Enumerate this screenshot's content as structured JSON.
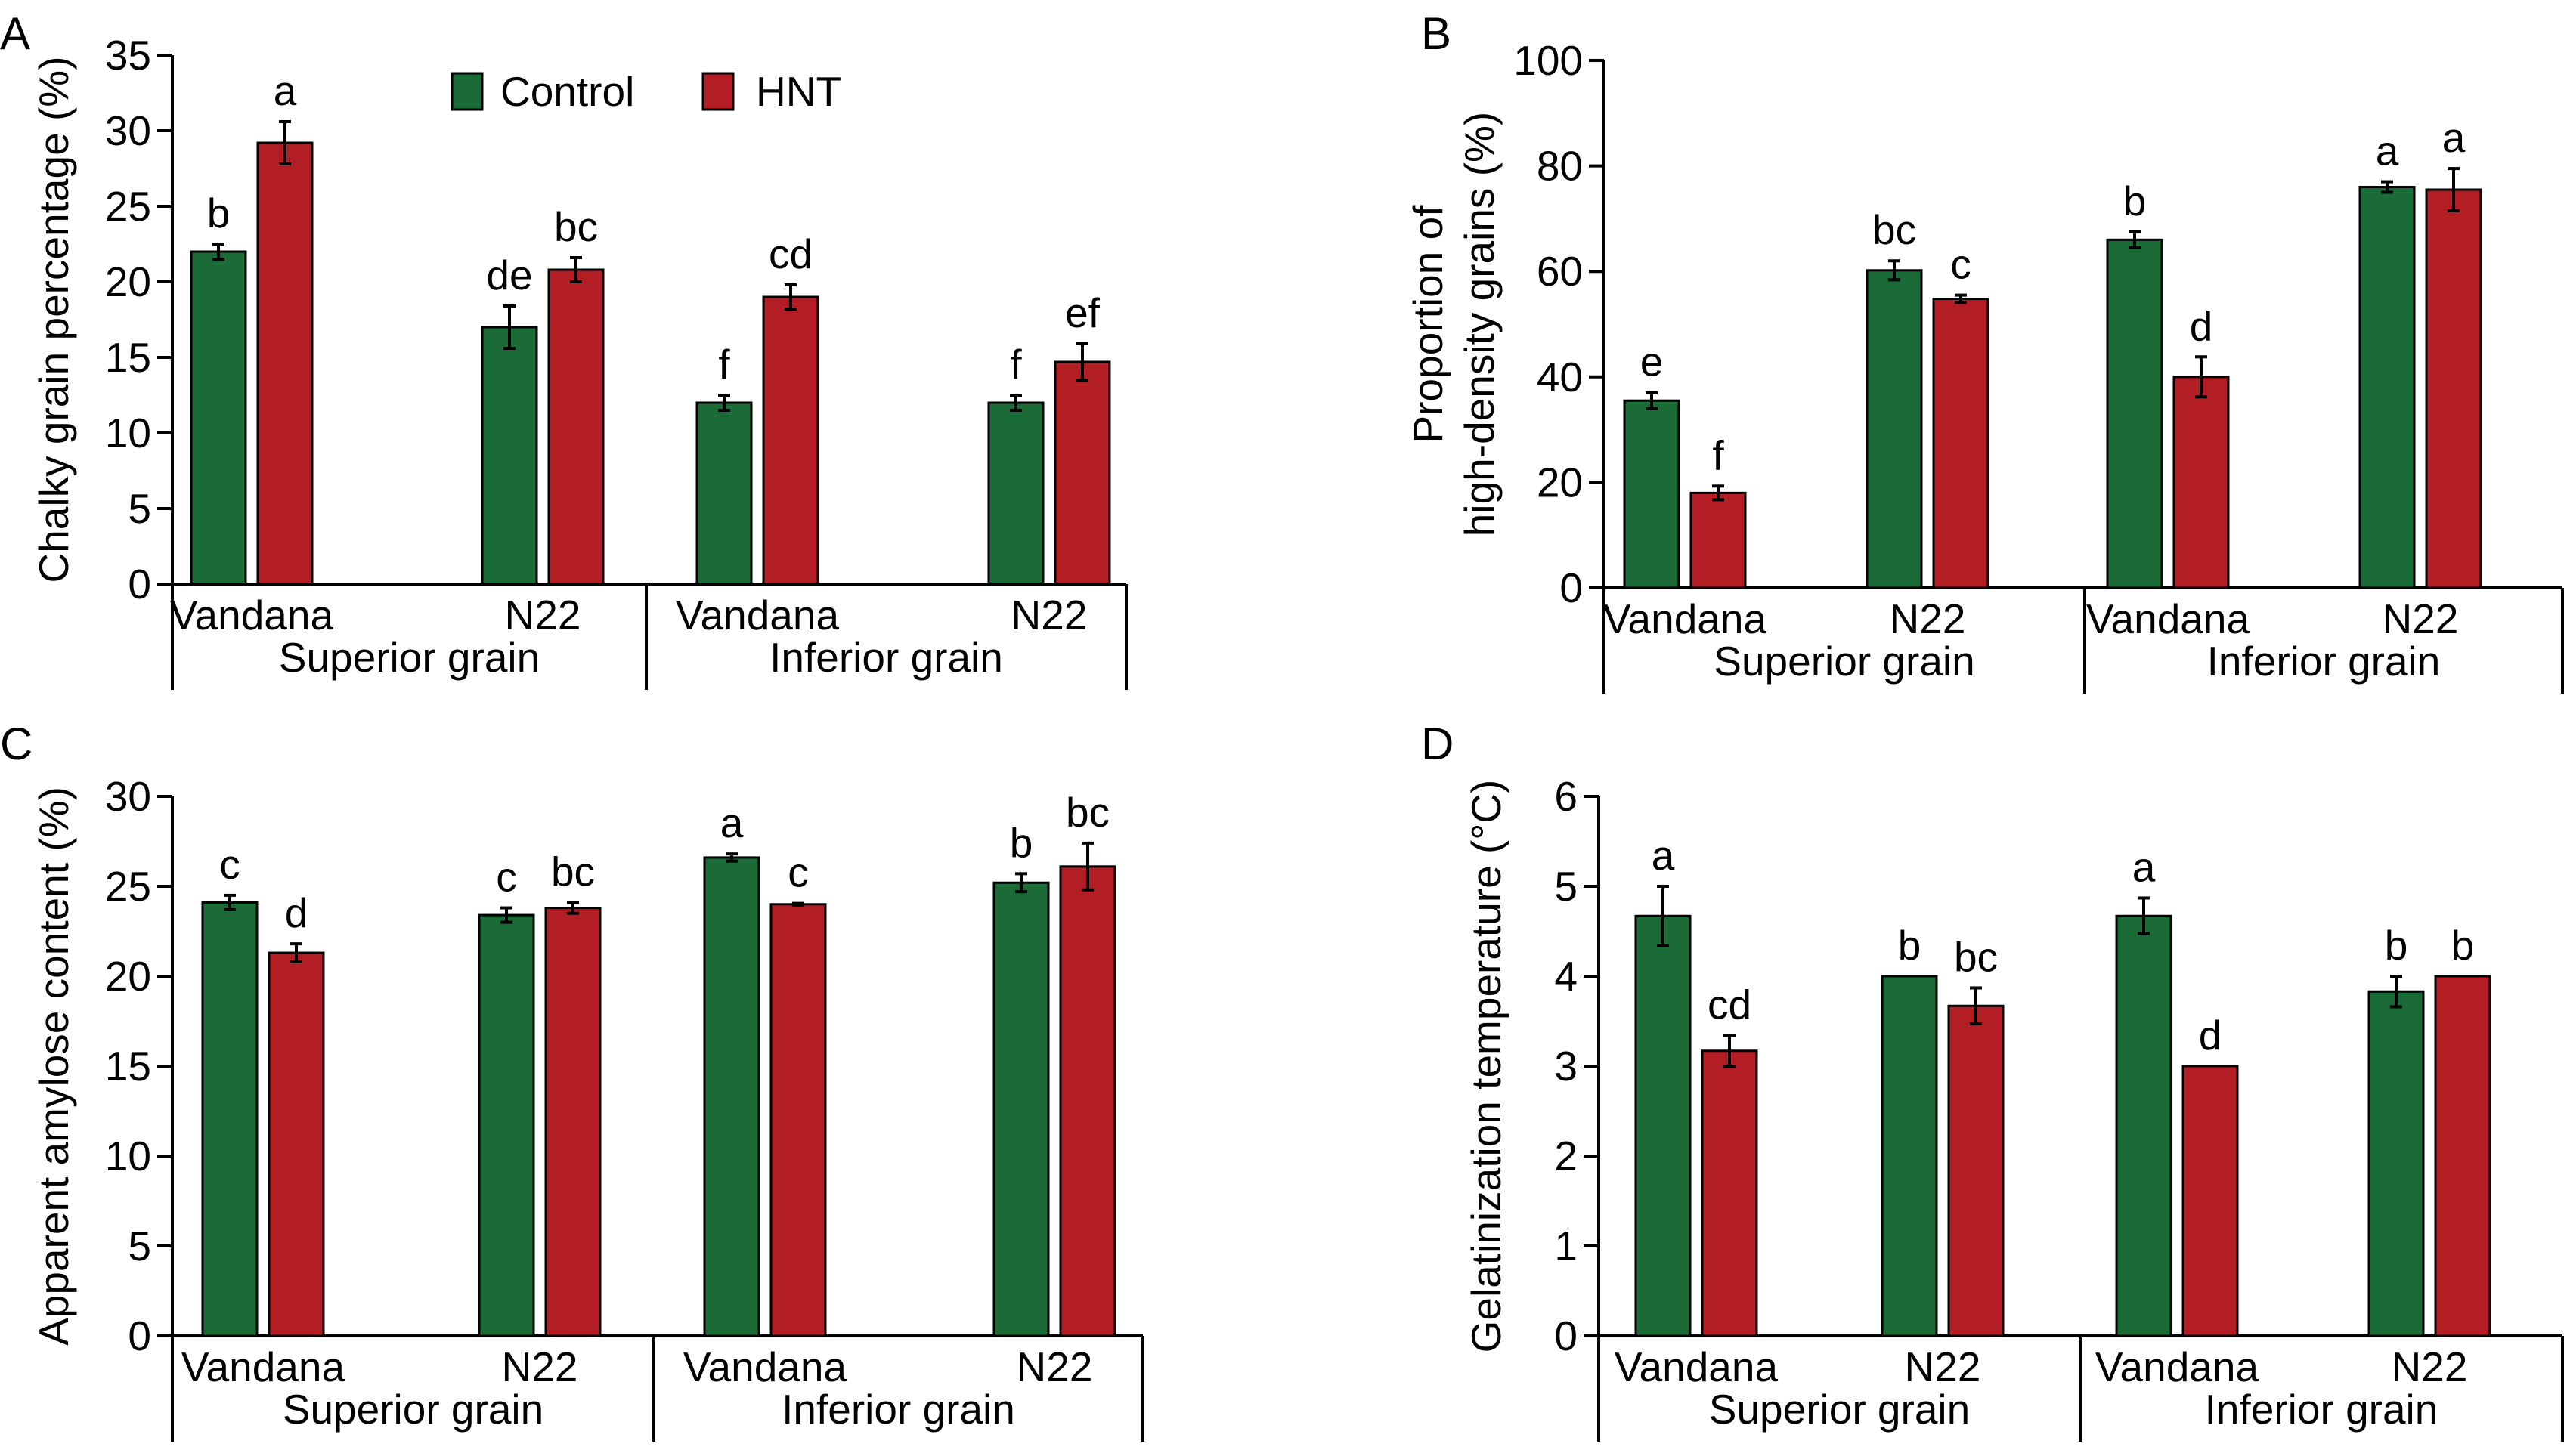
{
  "legend": {
    "entries": [
      {
        "label": "Control",
        "color": "#1a6b35"
      },
      {
        "label": "HNT",
        "color": "#b31e24"
      }
    ]
  },
  "colors": {
    "control": "#1a6b35",
    "hnt": "#b31e24",
    "axis": "#000000"
  },
  "chart_data": [
    {
      "panel": "A",
      "type": "bar",
      "ylabel": "Chalky grain percentage (%)",
      "ylim": [
        0,
        35
      ],
      "yticks": [
        0,
        5,
        10,
        15,
        20,
        25,
        30,
        35
      ],
      "categories": [
        "Vandana",
        "N22",
        "Vandana",
        "N22"
      ],
      "groups": [
        "Superior grain",
        "Inferior grain"
      ],
      "series": [
        {
          "name": "Control",
          "values": [
            22.0,
            17.0,
            12.0,
            12.0
          ],
          "errors": [
            0.5,
            1.4,
            0.5,
            0.5
          ],
          "letters": [
            "b",
            "de",
            "f",
            "f"
          ]
        },
        {
          "name": "HNT",
          "values": [
            29.2,
            20.8,
            19.0,
            14.7
          ],
          "errors": [
            1.4,
            0.8,
            0.8,
            1.2
          ],
          "letters": [
            "a",
            "bc",
            "cd",
            "ef"
          ]
        }
      ]
    },
    {
      "panel": "B",
      "type": "bar",
      "ylabel": "Proportion of high-density grains (%)",
      "ylabel_lines": [
        "Proportion of",
        "high-density grains (%)"
      ],
      "ylim": [
        0,
        100
      ],
      "yticks": [
        0,
        20,
        40,
        60,
        80,
        100
      ],
      "categories": [
        "Vandana",
        "N22",
        "Vandana",
        "N22"
      ],
      "groups": [
        "Superior grain",
        "Inferior grain"
      ],
      "series": [
        {
          "name": "Control",
          "values": [
            35.5,
            60.2,
            66.0,
            76.0
          ],
          "errors": [
            1.5,
            1.8,
            1.5,
            1.0
          ],
          "letters": [
            "e",
            "bc",
            "b",
            "a"
          ]
        },
        {
          "name": "HNT",
          "values": [
            18.0,
            54.8,
            40.0,
            75.5
          ],
          "errors": [
            1.3,
            0.7,
            3.8,
            4.0
          ],
          "letters": [
            "f",
            "c",
            "d",
            "a"
          ]
        }
      ]
    },
    {
      "panel": "C",
      "type": "bar",
      "ylabel": "Apparent amylose content (%)",
      "ylim": [
        0,
        30
      ],
      "yticks": [
        0,
        5,
        10,
        15,
        20,
        25,
        30
      ],
      "categories": [
        "Vandana",
        "N22",
        "Vandana",
        "N22"
      ],
      "groups": [
        "Superior grain",
        "Inferior grain"
      ],
      "series": [
        {
          "name": "Control",
          "values": [
            24.1,
            23.4,
            26.6,
            25.2
          ],
          "errors": [
            0.4,
            0.4,
            0.2,
            0.5
          ],
          "letters": [
            "c",
            "c",
            "a",
            "b"
          ]
        },
        {
          "name": "HNT",
          "values": [
            21.3,
            23.8,
            24.0,
            26.1
          ],
          "errors": [
            0.5,
            0.3,
            0.05,
            1.3
          ],
          "letters": [
            "d",
            "bc",
            "c",
            "bc"
          ]
        }
      ]
    },
    {
      "panel": "D",
      "type": "bar",
      "ylabel": "Gelatinization temperature (°C)",
      "ylim": [
        0,
        6
      ],
      "yticks": [
        0,
        1,
        2,
        3,
        4,
        5,
        6
      ],
      "categories": [
        "Vandana",
        "N22",
        "Vandana",
        "N22"
      ],
      "groups": [
        "Superior grain",
        "Inferior grain"
      ],
      "series": [
        {
          "name": "Control",
          "values": [
            4.67,
            4.0,
            4.67,
            3.83
          ],
          "errors": [
            0.33,
            0.0,
            0.2,
            0.17
          ],
          "letters": [
            "a",
            "b",
            "a",
            "b"
          ]
        },
        {
          "name": "HNT",
          "values": [
            3.17,
            3.67,
            3.0,
            4.0
          ],
          "errors": [
            0.17,
            0.2,
            0.0,
            0.0
          ],
          "letters": [
            "cd",
            "bc",
            "d",
            "b"
          ]
        }
      ]
    }
  ]
}
